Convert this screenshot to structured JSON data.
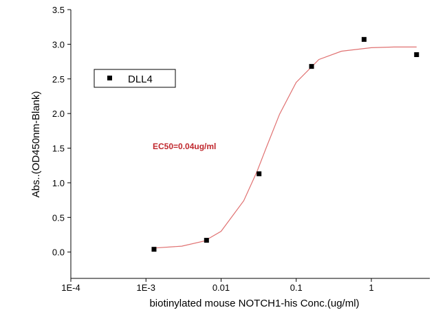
{
  "chart_data": {
    "type": "scatter",
    "xlabel": "biotinylated mouse NOTCH1-his Conc.(ug/ml)",
    "ylabel": "Abs..(OD450nm-Blank)",
    "annotation": "EC50=0.04ug/ml",
    "annotation_color": "#c0272d",
    "xscale": "log",
    "legend": "upper left",
    "xlim": [
      0.0001,
      6
    ],
    "ylim": [
      -0.38,
      3.5
    ],
    "xticks": [
      {
        "value": 0.0001,
        "label": "1E-4"
      },
      {
        "value": 0.001,
        "label": "1E-3"
      },
      0.01,
      0.1,
      1
    ],
    "yticks": [
      {
        "value": 0,
        "label": "0.0"
      },
      0.5,
      {
        "value": 1,
        "label": "1.0"
      },
      1.5,
      {
        "value": 2,
        "label": "2.0"
      },
      2.5,
      {
        "value": 3,
        "label": "3.0"
      },
      3.5
    ],
    "series": [
      {
        "name": "DLL4",
        "color": "#000000",
        "x": [
          0.00128,
          0.0064,
          0.032,
          0.16,
          0.8,
          4
        ],
        "values": [
          0.04,
          0.17,
          1.13,
          2.68,
          3.07,
          2.85
        ]
      }
    ],
    "fit_line": {
      "color": "#e07070",
      "x": [
        0.0013,
        0.003,
        0.006,
        0.01,
        0.02,
        0.03,
        0.04,
        0.06,
        0.1,
        0.2,
        0.4,
        1,
        2,
        4
      ],
      "values": [
        0.059,
        0.085,
        0.16,
        0.3,
        0.74,
        1.16,
        1.51,
        1.99,
        2.45,
        2.78,
        2.9,
        2.95,
        2.96,
        2.96
      ]
    }
  }
}
